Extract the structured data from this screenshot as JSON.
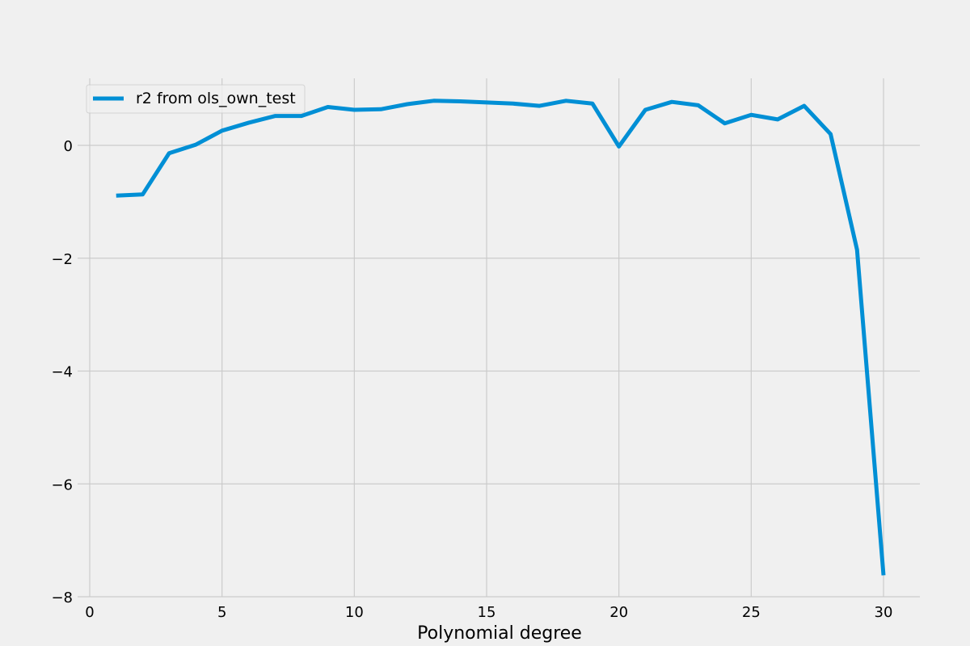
{
  "chart_data": {
    "type": "line",
    "title": "",
    "xlabel": "Polynomial degree",
    "ylabel": "",
    "xlim": [
      -0.45,
      31.45
    ],
    "ylim": [
      -8.0,
      1.2
    ],
    "xticks": [
      0,
      5,
      10,
      15,
      20,
      25,
      30
    ],
    "yticks": [
      0,
      -2,
      -4,
      -6,
      -8
    ],
    "xtick_labels": [
      "0",
      "5",
      "10",
      "15",
      "20",
      "25",
      "30"
    ],
    "ytick_labels": [
      "0",
      "−2",
      "−4",
      "−6",
      "−8"
    ],
    "grid": true,
    "legend_position": "top-left",
    "series": [
      {
        "name": "r2 from ols_own_test",
        "color": "#008fd5",
        "x": [
          1,
          2,
          3,
          4,
          5,
          6,
          7,
          8,
          9,
          10,
          11,
          12,
          13,
          14,
          15,
          16,
          17,
          18,
          19,
          20,
          21,
          22,
          23,
          24,
          25,
          26,
          27,
          28,
          29,
          30
        ],
        "y": [
          -0.89,
          -0.87,
          -0.14,
          0.01,
          0.26,
          0.4,
          0.52,
          0.52,
          0.68,
          0.63,
          0.64,
          0.73,
          0.79,
          0.78,
          0.76,
          0.74,
          0.7,
          0.79,
          0.74,
          -0.02,
          0.63,
          0.77,
          0.71,
          0.39,
          0.54,
          0.46,
          0.7,
          0.2,
          -1.85,
          -7.62
        ]
      }
    ]
  },
  "colors": {
    "background": "#f0f0f0",
    "grid": "#cbcbcb",
    "line": "#008fd5"
  }
}
